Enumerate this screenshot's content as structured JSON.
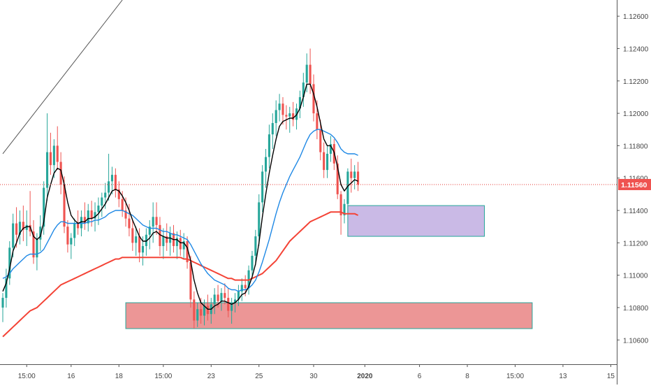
{
  "chart_data": {
    "type": "candlestick",
    "instrument_price_axis": "right",
    "colors": {
      "background": "#ffffff",
      "bull": "#26a69a",
      "bear": "#ef5350",
      "ma_fast": "#000000",
      "ma_mid": "#1e88e5",
      "ma_slow": "#f44336",
      "trendline": "#555555",
      "price_line": "#e53935",
      "zone_demand_fill": "#e57373",
      "zone_demand_border": "#26a69a",
      "zone_supply_fill": "#b39ddb",
      "zone_supply_border": "#26a69a",
      "axis_text": "#444444",
      "price_tag_bg": "#ef5350",
      "price_tag_text": "#ffffff"
    },
    "y_axis": {
      "min": 1.1045,
      "max": 1.127,
      "ticks": [
        1.106,
        1.108,
        1.11,
        1.112,
        1.114,
        1.116,
        1.118,
        1.12,
        1.122,
        1.124,
        1.126
      ],
      "tick_labels": [
        "1.10600",
        "1.10800",
        "1.11000",
        "1.11200",
        "1.11400",
        "1.11600",
        "1.11800",
        "1.12000",
        "1.12200",
        "1.12400",
        "1.12600"
      ]
    },
    "x_axis": {
      "labels": [
        {
          "text": "15:00",
          "i": 7
        },
        {
          "text": "16",
          "i": 20
        },
        {
          "text": "18",
          "i": 34
        },
        {
          "text": "15:00",
          "i": 47
        },
        {
          "text": "23",
          "i": 61
        },
        {
          "text": "25",
          "i": 75
        },
        {
          "text": "30",
          "i": 91
        },
        {
          "text": "2020",
          "i": 106,
          "bold": true
        },
        {
          "text": "6",
          "i": 122
        },
        {
          "text": "8",
          "i": 136
        },
        {
          "text": "15:00",
          "i": 150
        },
        {
          "text": "13",
          "i": 164
        },
        {
          "text": "15",
          "i": 178
        }
      ],
      "bar_count_visible": 183
    },
    "current_price": {
      "value": 1.1156,
      "label": "1.11560"
    },
    "zones": [
      {
        "name": "demand",
        "i_start": 36,
        "i_end": 155,
        "top": 1.1083,
        "bottom": 1.1067
      },
      {
        "name": "supply",
        "i_start": 101,
        "i_end": 141,
        "top": 1.1143,
        "bottom": 1.1124
      }
    ],
    "trendline": {
      "i1": 0,
      "v1": 1.1175,
      "i2": 35,
      "v2": 1.127
    },
    "candles": [
      [
        1.108,
        1.1089,
        1.1071,
        1.1086
      ],
      [
        1.1086,
        1.1104,
        1.108,
        1.1098
      ],
      [
        1.1098,
        1.1121,
        1.1094,
        1.1117
      ],
      [
        1.1117,
        1.1138,
        1.1111,
        1.1132
      ],
      [
        1.1132,
        1.1142,
        1.1117,
        1.1125
      ],
      [
        1.1125,
        1.114,
        1.1119,
        1.1133
      ],
      [
        1.1133,
        1.1143,
        1.1121,
        1.1128
      ],
      [
        1.1128,
        1.114,
        1.1118,
        1.1131
      ],
      [
        1.1131,
        1.1152,
        1.1124,
        1.1127
      ],
      [
        1.1127,
        1.1134,
        1.1107,
        1.1111
      ],
      [
        1.1111,
        1.1126,
        1.1103,
        1.1122
      ],
      [
        1.1122,
        1.1137,
        1.1115,
        1.113
      ],
      [
        1.113,
        1.1158,
        1.1125,
        1.1154
      ],
      [
        1.1154,
        1.12,
        1.1146,
        1.1176
      ],
      [
        1.1176,
        1.1188,
        1.1162,
        1.1168
      ],
      [
        1.1168,
        1.1184,
        1.116,
        1.118
      ],
      [
        1.118,
        1.1192,
        1.1165,
        1.117
      ],
      [
        1.117,
        1.1176,
        1.115,
        1.1156
      ],
      [
        1.1156,
        1.1161,
        1.1126,
        1.113
      ],
      [
        1.113,
        1.1134,
        1.1114,
        1.1119
      ],
      [
        1.1119,
        1.1126,
        1.111,
        1.1123
      ],
      [
        1.1123,
        1.1135,
        1.1118,
        1.1132
      ],
      [
        1.1132,
        1.114,
        1.1125,
        1.1129
      ],
      [
        1.1129,
        1.114,
        1.1124,
        1.1136
      ],
      [
        1.1136,
        1.1145,
        1.1128,
        1.1132
      ],
      [
        1.1132,
        1.1144,
        1.1127,
        1.114
      ],
      [
        1.114,
        1.1146,
        1.113,
        1.1135
      ],
      [
        1.1135,
        1.1145,
        1.1127,
        1.1139
      ],
      [
        1.1139,
        1.1148,
        1.1131,
        1.1143
      ],
      [
        1.1143,
        1.1151,
        1.1136,
        1.1148
      ],
      [
        1.1148,
        1.1157,
        1.1141,
        1.1151
      ],
      [
        1.1151,
        1.1175,
        1.1146,
        1.1158
      ],
      [
        1.1158,
        1.1167,
        1.115,
        1.1162
      ],
      [
        1.1162,
        1.1166,
        1.1148,
        1.1153
      ],
      [
        1.1153,
        1.1158,
        1.1142,
        1.1147
      ],
      [
        1.1147,
        1.1152,
        1.1136,
        1.114
      ],
      [
        1.114,
        1.1148,
        1.113,
        1.1135
      ],
      [
        1.1135,
        1.1144,
        1.1124,
        1.1129
      ],
      [
        1.1129,
        1.1134,
        1.1115,
        1.112
      ],
      [
        1.112,
        1.113,
        1.1112,
        1.1124
      ],
      [
        1.1124,
        1.1129,
        1.1108,
        1.1114
      ],
      [
        1.1114,
        1.1124,
        1.1106,
        1.1118
      ],
      [
        1.1118,
        1.1129,
        1.1112,
        1.1125
      ],
      [
        1.1125,
        1.1134,
        1.1116,
        1.113
      ],
      [
        1.113,
        1.1145,
        1.112,
        1.1136
      ],
      [
        1.1136,
        1.1145,
        1.1125,
        1.1131
      ],
      [
        1.1131,
        1.1136,
        1.1112,
        1.1118
      ],
      [
        1.1118,
        1.1129,
        1.111,
        1.1124
      ],
      [
        1.1124,
        1.1132,
        1.1115,
        1.112
      ],
      [
        1.112,
        1.113,
        1.1112,
        1.1126
      ],
      [
        1.1126,
        1.1131,
        1.1114,
        1.1118
      ],
      [
        1.1118,
        1.1127,
        1.111,
        1.1123
      ],
      [
        1.1123,
        1.1128,
        1.1112,
        1.1116
      ],
      [
        1.1116,
        1.1126,
        1.111,
        1.1121
      ],
      [
        1.1121,
        1.1124,
        1.1104,
        1.1108
      ],
      [
        1.1108,
        1.1112,
        1.108,
        1.1085
      ],
      [
        1.1085,
        1.109,
        1.1067,
        1.1072
      ],
      [
        1.1072,
        1.1083,
        1.1068,
        1.1079
      ],
      [
        1.1079,
        1.1086,
        1.107,
        1.1075
      ],
      [
        1.1075,
        1.1085,
        1.1069,
        1.1081
      ],
      [
        1.1081,
        1.1088,
        1.1072,
        1.1076
      ],
      [
        1.1076,
        1.1086,
        1.107,
        1.1082
      ],
      [
        1.1082,
        1.1092,
        1.1076,
        1.1088
      ],
      [
        1.1088,
        1.1094,
        1.108,
        1.1084
      ],
      [
        1.1084,
        1.1092,
        1.1078,
        1.1089
      ],
      [
        1.1089,
        1.1095,
        1.1082,
        1.1086
      ],
      [
        1.1086,
        1.1092,
        1.1074,
        1.1078
      ],
      [
        1.1078,
        1.1086,
        1.107,
        1.1083
      ],
      [
        1.1083,
        1.1089,
        1.1077,
        1.1085
      ],
      [
        1.1085,
        1.1094,
        1.1081,
        1.109
      ],
      [
        1.109,
        1.1098,
        1.1084,
        1.1094
      ],
      [
        1.1094,
        1.11,
        1.1087,
        1.1092
      ],
      [
        1.1092,
        1.1106,
        1.1088,
        1.1103
      ],
      [
        1.1103,
        1.1115,
        1.1098,
        1.1112
      ],
      [
        1.1112,
        1.1128,
        1.1106,
        1.1124
      ],
      [
        1.1124,
        1.115,
        1.1118,
        1.1145
      ],
      [
        1.1145,
        1.1168,
        1.1139,
        1.1164
      ],
      [
        1.1164,
        1.1178,
        1.1154,
        1.1173
      ],
      [
        1.1173,
        1.1193,
        1.1166,
        1.1187
      ],
      [
        1.1187,
        1.12,
        1.1178,
        1.1194
      ],
      [
        1.1194,
        1.1208,
        1.1186,
        1.1202
      ],
      [
        1.1202,
        1.1212,
        1.1195,
        1.1206
      ],
      [
        1.1206,
        1.121,
        1.1193,
        1.1199
      ],
      [
        1.1199,
        1.1205,
        1.119,
        1.1198
      ],
      [
        1.1198,
        1.1204,
        1.1188,
        1.12
      ],
      [
        1.12,
        1.1207,
        1.1192,
        1.1196
      ],
      [
        1.1196,
        1.1206,
        1.119,
        1.1203
      ],
      [
        1.1203,
        1.1214,
        1.1197,
        1.121
      ],
      [
        1.121,
        1.1225,
        1.1204,
        1.1219
      ],
      [
        1.1219,
        1.1237,
        1.1213,
        1.123
      ],
      [
        1.123,
        1.124,
        1.1212,
        1.1218
      ],
      [
        1.1218,
        1.1224,
        1.1195,
        1.12
      ],
      [
        1.12,
        1.1208,
        1.1184,
        1.119
      ],
      [
        1.119,
        1.1196,
        1.1171,
        1.1176
      ],
      [
        1.1176,
        1.1182,
        1.116,
        1.1165
      ],
      [
        1.1165,
        1.118,
        1.116,
        1.1175
      ],
      [
        1.1175,
        1.1186,
        1.117,
        1.1181
      ],
      [
        1.1181,
        1.1184,
        1.1165,
        1.1169
      ],
      [
        1.1169,
        1.1174,
        1.1147,
        1.115
      ],
      [
        1.115,
        1.1152,
        1.1125,
        1.1137
      ],
      [
        1.1137,
        1.1147,
        1.1132,
        1.1144
      ],
      [
        1.1144,
        1.1166,
        1.1138,
        1.1164
      ],
      [
        1.1164,
        1.1172,
        1.1151,
        1.116
      ],
      [
        1.116,
        1.1168,
        1.1153,
        1.1164
      ],
      [
        1.1164,
        1.117,
        1.1152,
        1.1156
      ]
    ],
    "ma_fast_values": [
      1.109,
      1.1095,
      1.1104,
      1.1115,
      1.112,
      1.1126,
      1.1129,
      1.113,
      1.113,
      1.1124,
      1.1122,
      1.1124,
      1.1133,
      1.1148,
      1.1156,
      1.1163,
      1.1166,
      1.1165,
      1.1156,
      1.1145,
      1.1137,
      1.1134,
      1.1132,
      1.1133,
      1.1133,
      1.1135,
      1.1135,
      1.1136,
      1.1138,
      1.1141,
      1.1144,
      1.1148,
      1.1152,
      1.1153,
      1.1152,
      1.1149,
      1.1145,
      1.114,
      1.1134,
      1.1129,
      1.1124,
      1.1121,
      1.1121,
      1.1123,
      1.1126,
      1.1127,
      1.1125,
      1.1124,
      1.1123,
      1.1123,
      1.1122,
      1.1122,
      1.112,
      1.112,
      1.1117,
      1.1109,
      1.1097,
      1.1089,
      1.1083,
      1.1081,
      1.1079,
      1.1079,
      1.1081,
      1.1082,
      1.1084,
      1.1084,
      1.1083,
      1.1082,
      1.1083,
      1.1085,
      1.1088,
      1.1089,
      1.1093,
      1.1099,
      1.1107,
      1.112,
      1.1136,
      1.115,
      1.1163,
      1.1174,
      1.1184,
      1.1192,
      1.1195,
      1.1196,
      1.1197,
      1.1197,
      1.1199,
      1.1203,
      1.121,
      1.1218,
      1.1218,
      1.1212,
      1.1204,
      1.1194,
      1.1184,
      1.118,
      1.118,
      1.1176,
      1.1167,
      1.1156,
      1.1152,
      1.1155,
      1.1157,
      1.1159,
      1.1158
    ],
    "ma_mid_values": [
      1.1098,
      1.1099,
      1.1101,
      1.1104,
      1.1106,
      1.1108,
      1.111,
      1.1112,
      1.1113,
      1.1113,
      1.1113,
      1.1114,
      1.1116,
      1.112,
      1.1124,
      1.1128,
      1.1131,
      1.1133,
      1.1133,
      1.1132,
      1.1132,
      1.1132,
      1.1132,
      1.1132,
      1.1132,
      1.1133,
      1.1133,
      1.1134,
      1.1134,
      1.1135,
      1.1136,
      1.1138,
      1.1139,
      1.114,
      1.114,
      1.114,
      1.1139,
      1.1138,
      1.1137,
      1.1135,
      1.1133,
      1.1131,
      1.113,
      1.1129,
      1.1129,
      1.1129,
      1.1128,
      1.1127,
      1.1127,
      1.1126,
      1.1125,
      1.1125,
      1.1124,
      1.1123,
      1.1122,
      1.1119,
      1.1115,
      1.1111,
      1.1107,
      1.1104,
      1.1101,
      1.1099,
      1.1097,
      1.1096,
      1.1095,
      1.1094,
      1.1092,
      1.1091,
      1.1091,
      1.109,
      1.1091,
      1.1091,
      1.1092,
      1.1094,
      1.1097,
      1.1102,
      1.1108,
      1.1115,
      1.1122,
      1.113,
      1.1138,
      1.1145,
      1.1151,
      1.1156,
      1.1161,
      1.1165,
      1.1169,
      1.1173,
      1.1178,
      1.1183,
      1.1187,
      1.1189,
      1.119,
      1.119,
      1.1189,
      1.1188,
      1.1187,
      1.1185,
      1.1182,
      1.1178,
      1.1176,
      1.1175,
      1.1175,
      1.1175,
      1.1174
    ],
    "ma_slow_values": [
      1.1062,
      1.1064,
      1.1066,
      1.1068,
      1.107,
      1.1072,
      1.1074,
      1.1076,
      1.1078,
      1.1079,
      1.108,
      1.1082,
      1.1084,
      1.1086,
      1.1088,
      1.109,
      1.1092,
      1.1094,
      1.1095,
      1.1096,
      1.1097,
      1.1098,
      1.1099,
      1.11,
      1.1101,
      1.1102,
      1.1103,
      1.1104,
      1.1105,
      1.1106,
      1.1107,
      1.1108,
      1.1109,
      1.111,
      1.111,
      1.1111,
      1.1111,
      1.1111,
      1.1111,
      1.1111,
      1.1111,
      1.1111,
      1.1111,
      1.1111,
      1.1111,
      1.1111,
      1.1111,
      1.1111,
      1.1111,
      1.1111,
      1.1111,
      1.1111,
      1.1111,
      1.111,
      1.111,
      1.1109,
      1.1108,
      1.1107,
      1.1106,
      1.1105,
      1.1104,
      1.1103,
      1.1102,
      1.1101,
      1.11,
      1.1099,
      1.1098,
      1.1098,
      1.1097,
      1.1097,
      1.1097,
      1.1097,
      1.1097,
      1.1098,
      1.1099,
      1.11,
      1.1101,
      1.1103,
      1.1105,
      1.1107,
      1.1109,
      1.1112,
      1.1115,
      1.1118,
      1.1121,
      1.1123,
      1.1125,
      1.1127,
      1.1129,
      1.1131,
      1.1133,
      1.1134,
      1.1135,
      1.1136,
      1.1137,
      1.1138,
      1.1139,
      1.1139,
      1.1139,
      1.1139,
      1.1138,
      1.1138,
      1.1138,
      1.1138,
      1.1137
    ]
  }
}
